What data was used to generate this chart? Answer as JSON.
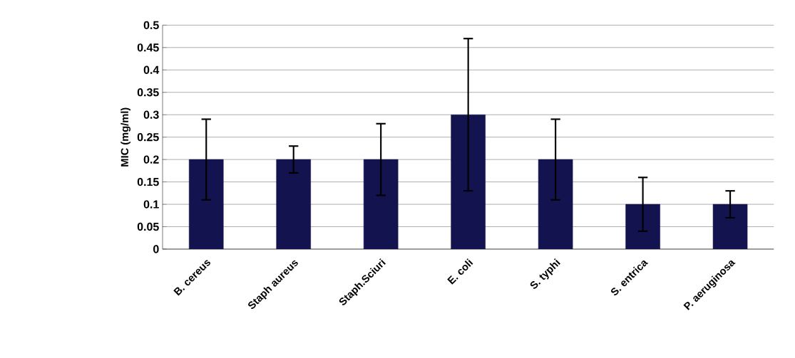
{
  "chart_data": {
    "type": "bar",
    "ylabel": "MIC (mg/ml)",
    "categories": [
      "B. cereus",
      "Staph aureus",
      "Staph.Sciuri",
      "E. coli",
      "S. typhi",
      "S. entrica",
      "P. aeruginosa"
    ],
    "values": [
      0.2,
      0.2,
      0.2,
      0.3,
      0.2,
      0.1,
      0.1
    ],
    "errors": [
      0.09,
      0.03,
      0.08,
      0.17,
      0.09,
      0.06,
      0.03
    ],
    "color": "#13134f",
    "ylim": [
      0,
      0.5
    ],
    "yticks": [
      0,
      0.05,
      0.1,
      0.15,
      0.2,
      0.25,
      0.3,
      0.35,
      0.4,
      0.45,
      0.5
    ],
    "grid": "y"
  }
}
